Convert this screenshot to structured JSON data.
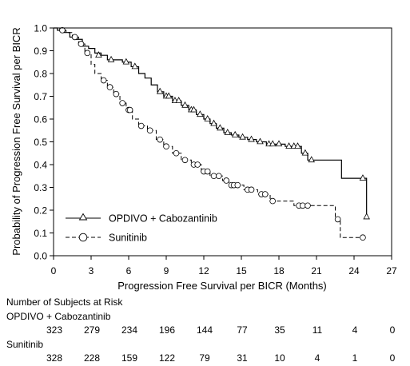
{
  "chart_data": {
    "type": "line",
    "xlabel": "Progression Free Survival per BICR (Months)",
    "ylabel": "Probability of Progression Free Survival per BICR",
    "xlim": [
      0,
      27
    ],
    "ylim": [
      0,
      1.0
    ],
    "x_ticks": [
      "0",
      "3",
      "6",
      "9",
      "12",
      "15",
      "18",
      "21",
      "24",
      "27"
    ],
    "y_ticks": [
      "0.0",
      "0.1",
      "0.2",
      "0.3",
      "0.4",
      "0.5",
      "0.6",
      "0.7",
      "0.8",
      "0.9",
      "1.0"
    ],
    "legend_position": "bottom-left",
    "series": [
      {
        "name": "OPDIVO + Cabozantinib",
        "line_style": "solid",
        "marker": "triangle",
        "color": "#000000",
        "steps": [
          [
            0,
            1.0
          ],
          [
            0.3,
            0.99
          ],
          [
            0.8,
            0.98
          ],
          [
            1.3,
            0.96
          ],
          [
            1.8,
            0.95
          ],
          [
            2.3,
            0.92
          ],
          [
            2.8,
            0.91
          ],
          [
            3.3,
            0.89
          ],
          [
            3.8,
            0.88
          ],
          [
            4.3,
            0.86
          ],
          [
            5.5,
            0.85
          ],
          [
            6.2,
            0.83
          ],
          [
            6.8,
            0.8
          ],
          [
            7.3,
            0.78
          ],
          [
            7.8,
            0.75
          ],
          [
            8.3,
            0.72
          ],
          [
            8.8,
            0.7
          ],
          [
            9.5,
            0.68
          ],
          [
            10.2,
            0.66
          ],
          [
            10.8,
            0.64
          ],
          [
            11.4,
            0.62
          ],
          [
            12.0,
            0.6
          ],
          [
            12.5,
            0.58
          ],
          [
            13.0,
            0.56
          ],
          [
            13.6,
            0.54
          ],
          [
            14.2,
            0.53
          ],
          [
            14.8,
            0.52
          ],
          [
            15.5,
            0.51
          ],
          [
            16.2,
            0.5
          ],
          [
            17.0,
            0.49
          ],
          [
            18.5,
            0.48
          ],
          [
            19.8,
            0.45
          ],
          [
            20.3,
            0.42
          ],
          [
            23.0,
            0.34
          ],
          [
            25.0,
            0.17
          ]
        ],
        "end_x": 25.0,
        "markers": [
          [
            3.6,
            0.88
          ],
          [
            4.6,
            0.86
          ],
          [
            5.8,
            0.85
          ],
          [
            6.5,
            0.83
          ],
          [
            8.5,
            0.72
          ],
          [
            9.0,
            0.7
          ],
          [
            9.2,
            0.7
          ],
          [
            9.7,
            0.68
          ],
          [
            10.0,
            0.68
          ],
          [
            10.5,
            0.66
          ],
          [
            11.0,
            0.64
          ],
          [
            11.2,
            0.64
          ],
          [
            11.7,
            0.62
          ],
          [
            12.3,
            0.6
          ],
          [
            12.8,
            0.58
          ],
          [
            13.3,
            0.56
          ],
          [
            13.9,
            0.54
          ],
          [
            14.5,
            0.53
          ],
          [
            15.1,
            0.52
          ],
          [
            15.8,
            0.51
          ],
          [
            16.5,
            0.5
          ],
          [
            17.2,
            0.49
          ],
          [
            17.5,
            0.49
          ],
          [
            18.0,
            0.49
          ],
          [
            18.8,
            0.48
          ],
          [
            19.2,
            0.48
          ],
          [
            19.5,
            0.48
          ],
          [
            20.1,
            0.45
          ],
          [
            20.6,
            0.42
          ],
          [
            24.7,
            0.34
          ],
          [
            25.0,
            0.17
          ]
        ]
      },
      {
        "name": "Sunitinib",
        "line_style": "dashed",
        "marker": "circle",
        "color": "#000000",
        "steps": [
          [
            0,
            1.0
          ],
          [
            0.5,
            0.99
          ],
          [
            1.0,
            0.98
          ],
          [
            1.5,
            0.96
          ],
          [
            2.0,
            0.93
          ],
          [
            2.5,
            0.89
          ],
          [
            3.0,
            0.84
          ],
          [
            3.3,
            0.8
          ],
          [
            3.8,
            0.77
          ],
          [
            4.3,
            0.74
          ],
          [
            4.8,
            0.71
          ],
          [
            5.3,
            0.67
          ],
          [
            5.8,
            0.64
          ],
          [
            6.3,
            0.6
          ],
          [
            6.8,
            0.57
          ],
          [
            7.5,
            0.55
          ],
          [
            8.2,
            0.51
          ],
          [
            8.8,
            0.48
          ],
          [
            9.5,
            0.45
          ],
          [
            10.2,
            0.42
          ],
          [
            11.0,
            0.4
          ],
          [
            11.8,
            0.37
          ],
          [
            12.5,
            0.35
          ],
          [
            13.5,
            0.33
          ],
          [
            14.0,
            0.31
          ],
          [
            15.2,
            0.29
          ],
          [
            16.3,
            0.27
          ],
          [
            17.3,
            0.24
          ],
          [
            19.2,
            0.22
          ],
          [
            22.5,
            0.16
          ],
          [
            22.9,
            0.08
          ]
        ],
        "end_x": 24.7,
        "markers": [
          [
            0.7,
            0.99
          ],
          [
            1.7,
            0.96
          ],
          [
            2.2,
            0.93
          ],
          [
            2.7,
            0.89
          ],
          [
            4.0,
            0.77
          ],
          [
            4.5,
            0.74
          ],
          [
            5.0,
            0.71
          ],
          [
            5.5,
            0.67
          ],
          [
            6.0,
            0.64
          ],
          [
            6.1,
            0.64
          ],
          [
            7.0,
            0.57
          ],
          [
            7.7,
            0.55
          ],
          [
            8.5,
            0.51
          ],
          [
            9.0,
            0.48
          ],
          [
            9.8,
            0.45
          ],
          [
            10.5,
            0.42
          ],
          [
            11.2,
            0.4
          ],
          [
            11.5,
            0.4
          ],
          [
            12.0,
            0.37
          ],
          [
            12.3,
            0.37
          ],
          [
            12.8,
            0.35
          ],
          [
            13.2,
            0.35
          ],
          [
            13.8,
            0.33
          ],
          [
            14.2,
            0.31
          ],
          [
            14.4,
            0.31
          ],
          [
            14.7,
            0.31
          ],
          [
            15.5,
            0.29
          ],
          [
            15.8,
            0.29
          ],
          [
            16.6,
            0.27
          ],
          [
            16.9,
            0.27
          ],
          [
            17.5,
            0.24
          ],
          [
            19.6,
            0.22
          ],
          [
            19.9,
            0.22
          ],
          [
            20.3,
            0.22
          ],
          [
            22.7,
            0.16
          ],
          [
            24.7,
            0.08
          ]
        ]
      }
    ]
  },
  "risk_table": {
    "title": "Number of Subjects at Risk",
    "rows": [
      {
        "label": "OPDIVO + Cabozantinib",
        "values": [
          "323",
          "279",
          "234",
          "196",
          "144",
          "77",
          "35",
          "11",
          "4",
          "0"
        ]
      },
      {
        "label": "Sunitinib",
        "values": [
          "328",
          "228",
          "159",
          "122",
          "79",
          "31",
          "10",
          "4",
          "1",
          "0"
        ]
      }
    ],
    "times": [
      0,
      3,
      6,
      9,
      12,
      15,
      18,
      21,
      24,
      27
    ]
  }
}
